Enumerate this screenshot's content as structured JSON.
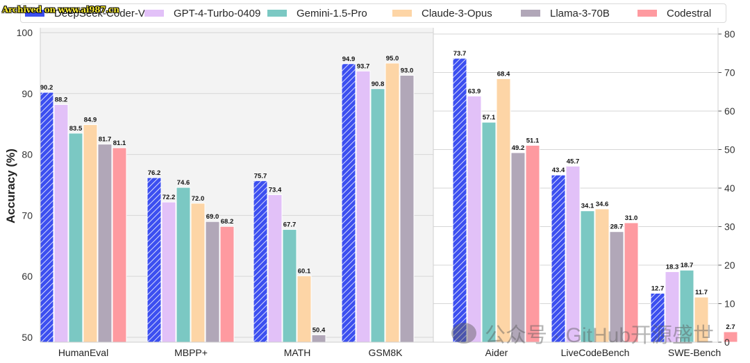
{
  "chart_data": {
    "type": "bar",
    "ylabel": "Accuracy (%)",
    "categories": [
      "HumanEval",
      "MBPP+",
      "MATH",
      "GSM8K",
      "Aider",
      "LiveCodeBench",
      "SWE-Bench"
    ],
    "left_panel_categories": [
      "HumanEval",
      "MBPP+",
      "MATH",
      "GSM8K"
    ],
    "right_panel_categories": [
      "Aider",
      "LiveCodeBench",
      "SWE-Bench"
    ],
    "left_axis": {
      "ylim": [
        49.2,
        100
      ],
      "ticks": [
        50,
        60,
        70,
        80,
        90,
        100
      ]
    },
    "right_axis": {
      "ylim": [
        0,
        80
      ],
      "ticks": [
        0,
        10,
        20,
        30,
        40,
        50,
        60,
        70,
        80
      ]
    },
    "grid": true,
    "legend_position": "top",
    "series": [
      {
        "name": "DeepSeek-Coder-V2",
        "color": "#3c4ff0",
        "hatch": true,
        "values": [
          90.2,
          76.2,
          75.7,
          94.9,
          73.7,
          43.4,
          12.7
        ]
      },
      {
        "name": "GPT-4-Turbo-0409",
        "color": "#e2c1f8",
        "hatch": false,
        "values": [
          88.2,
          72.2,
          73.4,
          93.7,
          63.9,
          45.7,
          18.3
        ]
      },
      {
        "name": "Gemini-1.5-Pro",
        "color": "#7bc8c3",
        "hatch": false,
        "values": [
          83.5,
          74.6,
          67.7,
          90.8,
          57.1,
          34.1,
          18.7
        ]
      },
      {
        "name": "Claude-3-Opus",
        "color": "#fdd5a6",
        "hatch": false,
        "values": [
          84.9,
          72.0,
          60.1,
          95.0,
          68.4,
          34.6,
          11.7
        ]
      },
      {
        "name": "Llama-3-70B",
        "color": "#b1a7b8",
        "hatch": false,
        "values": [
          81.7,
          69.0,
          50.4,
          93.0,
          49.2,
          28.7,
          null
        ]
      },
      {
        "name": "Codestral",
        "color": "#fe9aa0",
        "hatch": false,
        "values": [
          81.1,
          68.2,
          null,
          null,
          51.1,
          31.0,
          2.7
        ]
      }
    ]
  },
  "legend": {
    "items": [
      {
        "label": "DeepSeek-Coder-V2",
        "color": "#3c4ff0"
      },
      {
        "label": "GPT-4-Turbo-0409",
        "color": "#e2c1f8"
      },
      {
        "label": "Gemini-1.5-Pro",
        "color": "#7bc8c3"
      },
      {
        "label": "Claude-3-Opus",
        "color": "#fdd5a6"
      },
      {
        "label": "Llama-3-70B",
        "color": "#b1a7b8"
      },
      {
        "label": "Codestral",
        "color": "#fe9aa0"
      }
    ]
  },
  "overlays": {
    "archived_stamp": "Archived on www.ai987.cn",
    "watermark": "公众号 · GitHub开源盛世"
  },
  "colors": {
    "left_panel_bg": "#f3f3f3",
    "grid": "#d6d6d6",
    "axis_text": "#262626"
  }
}
